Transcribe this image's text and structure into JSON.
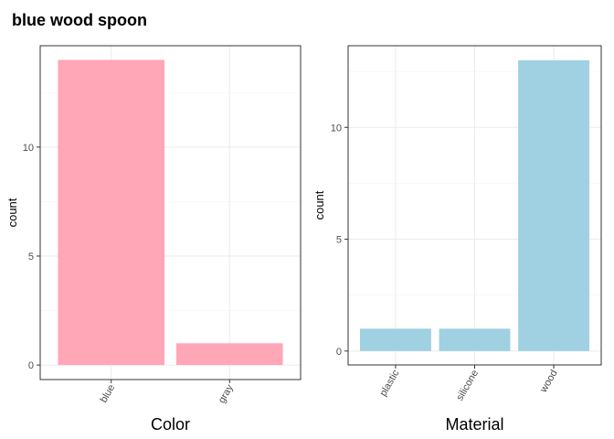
{
  "title": "blue wood spoon",
  "chart_data": [
    {
      "type": "bar",
      "categories": [
        "blue",
        "gray"
      ],
      "values": [
        14,
        1
      ],
      "xlabel": "Color",
      "ylabel": "count",
      "ylim": [
        0,
        14.65
      ],
      "yticks": [
        0,
        5,
        10
      ],
      "grid": true,
      "color": "#FFA6B7"
    },
    {
      "type": "bar",
      "categories": [
        "plastic",
        "silicone",
        "wood"
      ],
      "values": [
        1,
        1,
        13
      ],
      "xlabel": "Material",
      "ylabel": "count",
      "ylim": [
        0,
        13.65
      ],
      "yticks": [
        0,
        5,
        10
      ],
      "grid": true,
      "color": "#A0D1E2"
    }
  ]
}
